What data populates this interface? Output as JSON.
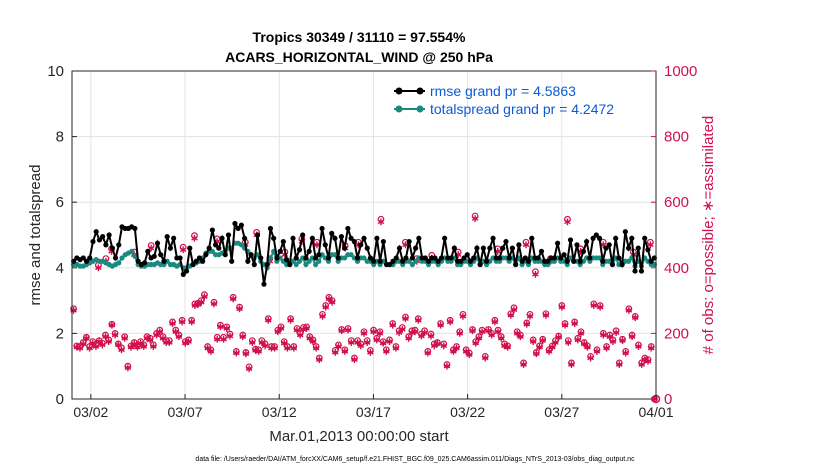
{
  "chart_data": {
    "type": "line",
    "title": "Tropics 30349 / 31110 = 97.554%",
    "subtitle": "ACARS_HORIZONTAL_WIND @ 250 hPa",
    "xlabel": "Mar.01,2013 00:00:00 start",
    "ylabel_left": "rmse and totalspread",
    "ylabel_right": "# of obs: o=possible; ∗=assimilated",
    "footer": "data file: /Users/raeder/DAI/ATM_forcXX/CAM6_setup/f.e21.FHIST_BGC.f09_025.CAM6assim.011/Diags_NTrS_2013-03/obs_diag_output.nc",
    "x_range_days": [
      0,
      31
    ],
    "x_ticks": [
      {
        "day": 1,
        "label": "03/02"
      },
      {
        "day": 6,
        "label": "03/07"
      },
      {
        "day": 11,
        "label": "03/12"
      },
      {
        "day": 16,
        "label": "03/17"
      },
      {
        "day": 21,
        "label": "03/22"
      },
      {
        "day": 26,
        "label": "03/27"
      },
      {
        "day": 31,
        "label": "04/01"
      }
    ],
    "ylim_left": [
      0,
      10
    ],
    "yticks_left": [
      "0",
      "2",
      "4",
      "6",
      "8",
      "10"
    ],
    "ylim_right": [
      0,
      1000
    ],
    "yticks_right": [
      "0",
      "200",
      "400",
      "600",
      "800",
      "1000"
    ],
    "legend": [
      {
        "label": "rmse grand pr = 4.5863",
        "color": "#000000"
      },
      {
        "label": "totalspread grand pr = 4.2472",
        "color": "#1a8a80"
      }
    ],
    "colors": {
      "rmse": "#000000",
      "spread": "#1a8a80",
      "obs": "#d0104c",
      "legend_text": "#0b5bd6"
    },
    "series": [
      {
        "name": "rmse",
        "axis": "left",
        "values": [
          4.2,
          4.3,
          4.25,
          4.3,
          4.2,
          4.3,
          4.8,
          5.1,
          4.85,
          4.95,
          4.7,
          5.0,
          4.6,
          4.3,
          4.7,
          5.25,
          5.2,
          5.2,
          5.25,
          5.2,
          4.2,
          4.1,
          4.15,
          4.5,
          4.3,
          4.35,
          4.75,
          4.4,
          4.2,
          4.95,
          4.6,
          4.9,
          4.3,
          4.3,
          3.8,
          3.9,
          4.6,
          4.1,
          4.2,
          4.3,
          4.2,
          4.4,
          4.6,
          5.15,
          4.7,
          4.6,
          4.9,
          4.4,
          5.0,
          4.2,
          5.35,
          5.2,
          5.3,
          4.9,
          4.2,
          4.4,
          4.1,
          5.0,
          4.3,
          3.5,
          4.1,
          5.2,
          4.9,
          4.3,
          4.5,
          4.8,
          4.25,
          4.1,
          4.9,
          4.3,
          4.55,
          5.0,
          4.3,
          4.5,
          4.9,
          4.3,
          4.4,
          5.2,
          4.7,
          4.3,
          5.05,
          4.9,
          4.3,
          4.95,
          4.6,
          5.2,
          4.9,
          4.8,
          4.3,
          4.7,
          4.9,
          4.6,
          4.3,
          4.2,
          4.9,
          4.2,
          4.8,
          4.1,
          4.1,
          4.2,
          4.3,
          4.6,
          4.2,
          4.3,
          4.8,
          4.3,
          4.6,
          4.9,
          4.3,
          4.3,
          4.2,
          4.3,
          4.3,
          4.2,
          4.3,
          4.9,
          4.3,
          4.3,
          4.6,
          4.2,
          4.2,
          4.3,
          4.4,
          4.2,
          4.3,
          4.6,
          4.1,
          4.6,
          4.2,
          4.6,
          4.9,
          4.3,
          4.3,
          4.6,
          4.8,
          4.3,
          4.6,
          4.1,
          4.7,
          4.2,
          4.3,
          4.2,
          4.9,
          4.3,
          4.3,
          4.5,
          4.2,
          4.2,
          4.3,
          4.3,
          4.75,
          4.3,
          4.4,
          4.2,
          4.85,
          4.2,
          4.7,
          4.2,
          4.5,
          4.8,
          4.3,
          4.9,
          5.0,
          4.9,
          4.2,
          4.6,
          4.7,
          4.1,
          4.9,
          4.3,
          4.1,
          5.1,
          4.6,
          4.9,
          3.9,
          4.6,
          3.9,
          4.9,
          4.55,
          4.2,
          4.3
        ]
      },
      {
        "name": "totalspread",
        "axis": "left",
        "values": [
          4.1,
          4.1,
          4.05,
          4.05,
          4.1,
          4.15,
          4.2,
          4.25,
          4.2,
          4.2,
          4.15,
          4.1,
          4.05,
          4.1,
          4.15,
          4.3,
          4.4,
          4.45,
          4.5,
          4.35,
          4.1,
          4.05,
          4.05,
          4.1,
          4.1,
          4.1,
          4.15,
          4.1,
          4.1,
          4.2,
          4.1,
          4.1,
          4.05,
          4.1,
          4.0,
          4.0,
          4.05,
          4.1,
          4.15,
          4.2,
          4.3,
          4.45,
          4.5,
          4.5,
          4.4,
          4.4,
          4.45,
          4.5,
          4.6,
          4.6,
          4.75,
          4.75,
          4.7,
          4.6,
          4.5,
          4.4,
          4.3,
          4.4,
          4.2,
          4.1,
          4.0,
          4.3,
          4.5,
          4.2,
          4.3,
          4.2,
          4.1,
          4.1,
          4.2,
          4.1,
          4.2,
          4.3,
          4.1,
          4.2,
          4.3,
          4.1,
          4.2,
          4.4,
          4.3,
          4.2,
          4.4,
          4.4,
          4.2,
          4.3,
          4.3,
          4.4,
          4.4,
          4.3,
          4.2,
          4.3,
          4.3,
          4.2,
          4.2,
          4.1,
          4.2,
          4.1,
          4.2,
          4.1,
          4.1,
          4.1,
          4.2,
          4.2,
          4.1,
          4.2,
          4.2,
          4.1,
          4.2,
          4.3,
          4.2,
          4.2,
          4.1,
          4.2,
          4.2,
          4.1,
          4.2,
          4.3,
          4.2,
          4.2,
          4.3,
          4.1,
          4.1,
          4.2,
          4.2,
          4.1,
          4.2,
          4.3,
          4.1,
          4.2,
          4.1,
          4.2,
          4.3,
          4.2,
          4.2,
          4.3,
          4.3,
          4.2,
          4.3,
          4.1,
          4.3,
          4.1,
          4.2,
          4.1,
          4.3,
          4.2,
          4.2,
          4.2,
          4.1,
          4.1,
          4.2,
          4.2,
          4.3,
          4.2,
          4.2,
          4.1,
          4.3,
          4.2,
          4.2,
          4.1,
          4.2,
          4.3,
          4.2,
          4.3,
          4.3,
          4.3,
          4.1,
          4.2,
          4.2,
          4.1,
          4.3,
          4.1,
          4.1,
          4.2,
          4.2,
          4.3,
          4.05,
          4.2,
          4.05,
          4.3,
          4.2,
          4.1,
          4.1
        ]
      },
      {
        "name": "obs_possible",
        "axis": "right",
        "values": [
          275,
          162,
          160,
          172,
          188,
          160,
          175,
          165,
          178,
          170,
          195,
          180,
          228,
          200,
          168,
          156,
          190,
          100,
          162,
          172,
          162,
          175,
          165,
          190,
          185,
          165,
          200,
          210,
          190,
          178,
          178,
          235,
          210,
          195,
          240,
          175,
          180,
          240,
          290,
          292,
          300,
          318,
          160,
          150,
          295,
          188,
          225,
          188,
          220,
          198,
          310,
          145,
          280,
          195,
          142,
          98,
          178,
          152,
          150,
          178,
          168,
          245,
          160,
          160,
          210,
          220,
          175,
          160,
          245,
          160,
          215,
          200,
          218,
          220,
          190,
          180,
          160,
          125,
          258,
          285,
          310,
          300,
          148,
          165,
          212,
          150,
          215,
          178,
          125,
          178,
          168,
          205,
          178,
          148,
          210,
          185,
          205,
          175,
          150,
          180,
          230,
          160,
          208,
          218,
          250,
          190,
          208,
          210,
          245,
          198,
          208,
          145,
          198,
          168,
          172,
          230,
          168,
          105,
          240,
          150,
          160,
          205,
          258,
          150,
          140,
          212,
          175,
          190,
          210,
          130,
          212,
          200,
          240,
          210,
          190,
          168,
          162,
          260,
          278,
          205,
          195,
          110,
          232,
          258,
          180,
          142,
          162,
          182,
          260,
          150,
          162,
          178,
          192,
          285,
          230,
          178,
          110,
          235,
          185,
          205,
          172,
          162,
          130,
          290,
          150,
          285,
          200,
          160,
          195,
          180,
          208,
          110,
          182,
          145,
          275,
          195,
          252,
          165,
          110,
          125,
          120,
          160,
          0
        ]
      },
      {
        "name": "obs_assimilated",
        "axis": "right",
        "values": [
          270,
          158,
          155,
          168,
          185,
          155,
          170,
          160,
          175,
          165,
          190,
          175,
          225,
          195,
          165,
          150,
          185,
          95,
          158,
          168,
          158,
          170,
          160,
          185,
          180,
          160,
          195,
          205,
          185,
          172,
          172,
          230,
          205,
          190,
          235,
          170,
          175,
          235,
          285,
          288,
          295,
          312,
          155,
          145,
          290,
          182,
          220,
          182,
          215,
          192,
          305,
          140,
          275,
          190,
          138,
          92,
          172,
          148,
          145,
          172,
          162,
          240,
          155,
          155,
          205,
          215,
          170,
          155,
          240,
          155,
          210,
          195,
          212,
          215,
          185,
          175,
          155,
          120,
          252,
          280,
          305,
          295,
          142,
          160,
          208,
          145,
          210,
          172,
          120,
          172,
          162,
          200,
          172,
          142,
          205,
          180,
          200,
          170,
          145,
          175,
          225,
          155,
          202,
          212,
          245,
          185,
          202,
          205,
          240,
          192,
          202,
          140,
          192,
          162,
          168,
          225,
          162,
          100,
          235,
          145,
          155,
          200,
          252,
          145,
          135,
          208,
          170,
          185,
          205,
          125,
          208,
          195,
          235,
          205,
          185,
          162,
          158,
          255,
          272,
          200,
          190,
          105,
          228,
          252,
          175,
          138,
          158,
          178,
          255,
          145,
          158,
          172,
          188,
          280,
          225,
          172,
          105,
          230,
          180,
          200,
          168,
          158,
          125,
          285,
          145,
          280,
          195,
          155,
          190,
          175,
          202,
          105,
          178,
          140,
          270,
          190,
          248,
          160,
          105,
          120,
          115,
          155,
          0
        ]
      }
    ],
    "obs_near_rmse": {
      "days": [
        1.4,
        1.8,
        2.1,
        3.3,
        4.2,
        5.9,
        6.5,
        7.7,
        9.2,
        9.8,
        10.5,
        11.3,
        12.2,
        13.0,
        14.5,
        15.2,
        16.4,
        17.7,
        18.3,
        19.1,
        20.5,
        21.4,
        22.6,
        24.1,
        24.6,
        25.4,
        26.3,
        27.0,
        28.2,
        29.8,
        30.7
      ],
      "values": [
        400,
        420,
        450,
        440,
        460,
        455,
        490,
        480,
        470,
        500,
        420,
        440,
        480,
        470,
        460,
        470,
        540,
        470,
        420,
        430,
        440,
        550,
        450,
        470,
        380,
        420,
        540,
        450,
        470,
        440,
        470
      ]
    }
  }
}
